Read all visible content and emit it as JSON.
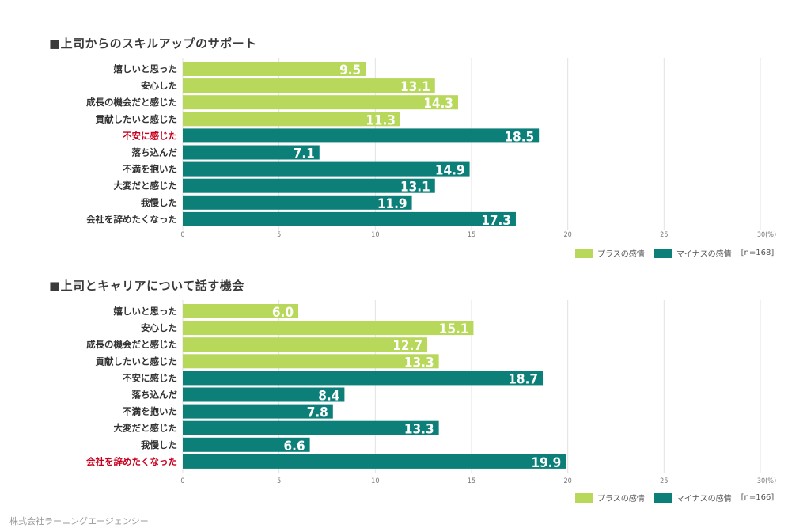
{
  "footer": "株式会社ラーニングエージェンシー",
  "colors": {
    "plus": "#b7d85a",
    "minus": "#0b7f78",
    "highlight": "#c8001e",
    "label": "#333333",
    "grid": "#e2e2e2"
  },
  "chart_data": [
    {
      "type": "bar",
      "orientation": "horizontal",
      "title": "■上司からのスキルアップのサポート",
      "categories": [
        "嬉しいと思った",
        "安心した",
        "成長の機会だと感じた",
        "貢献したいと感じた",
        "不安に感じた",
        "落ち込んだ",
        "不満を抱いた",
        "大変だと感じた",
        "我慢した",
        "会社を辞めたくなった"
      ],
      "values": [
        9.5,
        13.1,
        14.3,
        11.3,
        18.5,
        7.1,
        14.9,
        13.1,
        11.9,
        17.3
      ],
      "value_labels": [
        "9.5",
        "13.1",
        "14.3",
        "11.3",
        "18.5",
        "7.1",
        "14.9",
        "13.1",
        "11.9",
        "17.3"
      ],
      "groups": [
        "plus",
        "plus",
        "plus",
        "plus",
        "minus",
        "minus",
        "minus",
        "minus",
        "minus",
        "minus"
      ],
      "highlighted": [
        "不安に感じた"
      ],
      "xlim": [
        0,
        30
      ],
      "xticks": [
        "0",
        "5",
        "10",
        "15",
        "20",
        "25",
        "30(%)"
      ],
      "grid": true,
      "legend": {
        "items": [
          {
            "key": "plus",
            "label": "プラスの感情"
          },
          {
            "key": "minus",
            "label": "マイナスの感情"
          }
        ],
        "note": "[n=168]",
        "placement": "bottom-right"
      }
    },
    {
      "type": "bar",
      "orientation": "horizontal",
      "title": "■上司とキャリアについて話す機会",
      "categories": [
        "嬉しいと思った",
        "安心した",
        "成長の機会だと感じた",
        "貢献したいと感じた",
        "不安に感じた",
        "落ち込んだ",
        "不満を抱いた",
        "大変だと感じた",
        "我慢した",
        "会社を辞めたくなった"
      ],
      "values": [
        6.0,
        15.1,
        12.7,
        13.3,
        18.7,
        8.4,
        7.8,
        13.3,
        6.6,
        19.9
      ],
      "value_labels": [
        "6.0",
        "15.1",
        "12.7",
        "13.3",
        "18.7",
        "8.4",
        "7.8",
        "13.3",
        "6.6",
        "19.9"
      ],
      "groups": [
        "plus",
        "plus",
        "plus",
        "plus",
        "minus",
        "minus",
        "minus",
        "minus",
        "minus",
        "minus"
      ],
      "highlighted": [
        "会社を辞めたくなった"
      ],
      "xlim": [
        0,
        30
      ],
      "xticks": [
        "0",
        "5",
        "10",
        "15",
        "20",
        "25",
        "30(%)"
      ],
      "grid": true,
      "legend": {
        "items": [
          {
            "key": "plus",
            "label": "プラスの感情"
          },
          {
            "key": "minus",
            "label": "マイナスの感情"
          }
        ],
        "note": "[n=166]",
        "placement": "bottom-right"
      }
    }
  ]
}
